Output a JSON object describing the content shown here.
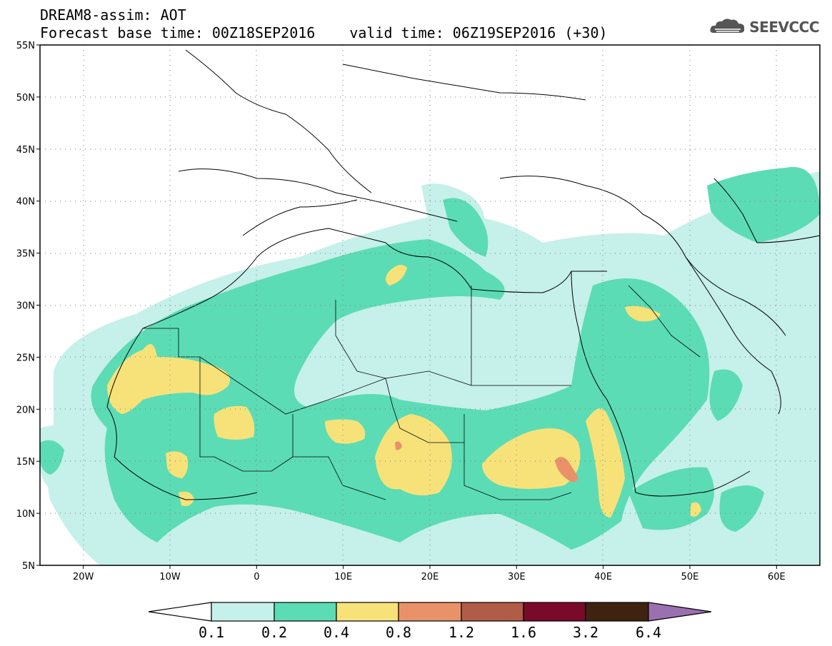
{
  "title": {
    "line1": "DREAM8-assim: AOT",
    "line2_base": "Forecast base time: 00Z18SEP2016",
    "line2_valid": "valid time: 06Z19SEP2016 (+30)"
  },
  "logo": {
    "text": "SEEVCCC",
    "icon": "cloud-logo-icon"
  },
  "map": {
    "lon_range": [
      -25,
      65
    ],
    "lat_range": [
      5,
      55
    ],
    "lat_ticks": [
      "5N",
      "10N",
      "15N",
      "20N",
      "25N",
      "30N",
      "35N",
      "40N",
      "45N",
      "50N",
      "55N"
    ],
    "lon_ticks": [
      "20W",
      "10W",
      "0",
      "10E",
      "20E",
      "30E",
      "40E",
      "50E",
      "60E"
    ],
    "gridlines": "dotted"
  },
  "colorbar": {
    "labels": [
      "0.1",
      "0.2",
      "0.4",
      "0.8",
      "1.2",
      "1.6",
      "3.2",
      "6.4"
    ],
    "colors": [
      "#ffffff",
      "#c6f0ea",
      "#5cdcb4",
      "#f7e27a",
      "#e9926a",
      "#b05c46",
      "#7a0a2a",
      "#3e2410",
      "#9a70b0"
    ]
  }
}
